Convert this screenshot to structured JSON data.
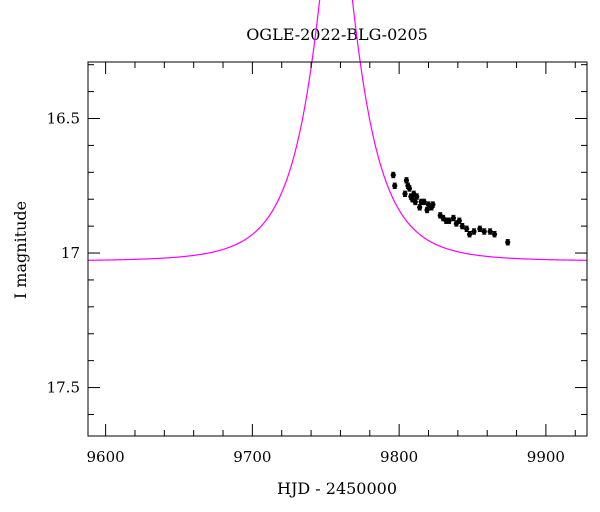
{
  "chart_data": {
    "type": "scatter",
    "title": "OGLE-2022-BLG-0205",
    "xlabel": "HJD - 2450000",
    "ylabel": "I magnitude",
    "xlim": [
      9588,
      9928
    ],
    "ylim": [
      17.68,
      16.29
    ],
    "y_inverted": true,
    "x_ticks": [
      9600,
      9700,
      9800,
      9900
    ],
    "x_tick_labels": [
      "9600",
      "9700",
      "9800",
      "9900"
    ],
    "y_ticks": [
      16.5,
      17,
      17.5
    ],
    "y_tick_labels": [
      "16.5",
      "17",
      "17.5"
    ],
    "grid": false,
    "colors": {
      "model": "#ff00ff",
      "points": "#000000"
    },
    "model": {
      "t0": 9757,
      "tE": 34,
      "u0": 0.29,
      "blend_fraction": 1.0,
      "baseline_mag": 17.03,
      "color": "#ff00ff"
    },
    "series": [
      {
        "x": [
          9796,
          9797,
          9804,
          9805,
          9806,
          9807,
          9808,
          9809,
          9810,
          9811,
          9812,
          9814,
          9815,
          9817,
          9819,
          9820,
          9822,
          9823,
          9828,
          9830,
          9832,
          9834,
          9837,
          9839,
          9841,
          9843,
          9846,
          9848,
          9851,
          9855,
          9858,
          9862,
          9865,
          9874
        ],
        "y": [
          16.71,
          16.75,
          16.78,
          16.73,
          16.75,
          16.76,
          16.79,
          16.8,
          16.78,
          16.81,
          16.79,
          16.83,
          16.81,
          16.81,
          16.84,
          16.82,
          16.83,
          16.82,
          16.86,
          16.87,
          16.88,
          16.88,
          16.87,
          16.89,
          16.88,
          16.9,
          16.91,
          16.93,
          16.92,
          16.91,
          16.92,
          16.92,
          16.93,
          16.96
        ],
        "yerr": [
          0.01,
          0.01,
          0.01,
          0.01,
          0.01,
          0.01,
          0.01,
          0.01,
          0.01,
          0.01,
          0.01,
          0.01,
          0.01,
          0.01,
          0.01,
          0.01,
          0.01,
          0.01,
          0.01,
          0.01,
          0.01,
          0.01,
          0.01,
          0.01,
          0.01,
          0.01,
          0.01,
          0.01,
          0.01,
          0.01,
          0.01,
          0.01,
          0.01,
          0.01
        ]
      }
    ]
  }
}
